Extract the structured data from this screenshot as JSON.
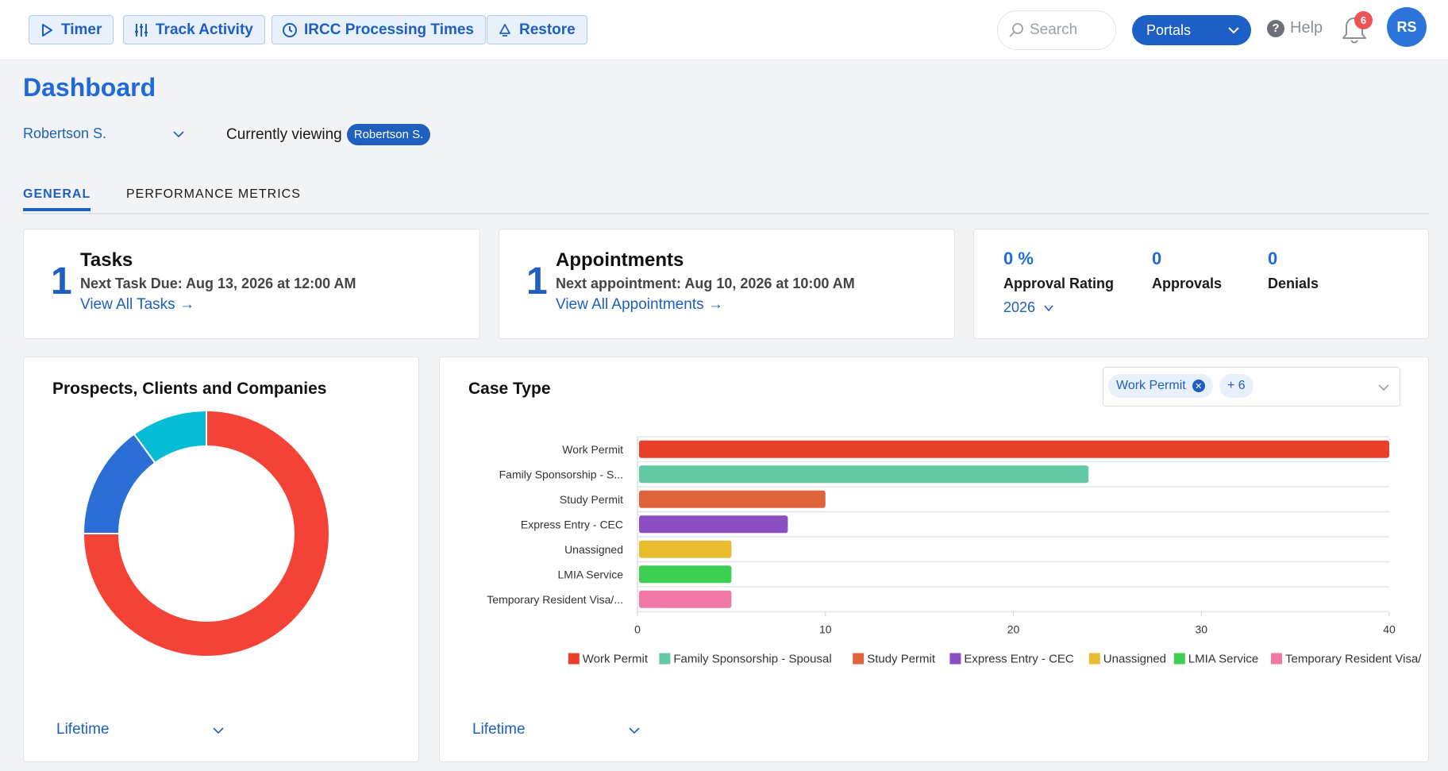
{
  "topbar": {
    "buttons": [
      {
        "label": "Timer",
        "icon": "play-icon"
      },
      {
        "label": "Track Activity",
        "icon": "sliders-icon"
      },
      {
        "label": "IRCC Processing Times",
        "icon": "clock-icon"
      },
      {
        "label": "Restore",
        "icon": "recycle-icon"
      }
    ],
    "search_placeholder": "Search",
    "portals_label": "Portals",
    "help_label": "Help",
    "notification_count": "6",
    "avatar_initials": "RS"
  },
  "header": {
    "title": "Dashboard",
    "user_select": "Robertson S.",
    "viewing_label": "Currently viewing",
    "viewing_user": "Robertson S."
  },
  "tabs": [
    {
      "label": "GENERAL",
      "active": true
    },
    {
      "label": "PERFORMANCE METRICS",
      "active": false
    }
  ],
  "tasks": {
    "count": "1",
    "title": "Tasks",
    "next": "Next Task Due: Aug 13, 2026 at 12:00 AM",
    "link": "View All Tasks →"
  },
  "appointments": {
    "count": "1",
    "title": "Appointments",
    "next": "Next appointment: Aug 10, 2026 at 10:00 AM",
    "link": "View All Appointments →"
  },
  "metrics": {
    "approval_rating_value": "0 %",
    "approval_rating_label": "Approval Rating",
    "approvals_value": "0",
    "approvals_label": "Approvals",
    "denials_value": "0",
    "denials_label": "Denials",
    "year": "2026"
  },
  "prospects_panel": {
    "title": "Prospects, Clients and Companies",
    "period": "Lifetime",
    "donut": [
      {
        "value": 75,
        "color": "#f44336"
      },
      {
        "value": 15,
        "color": "#2b6fd6"
      },
      {
        "value": 10,
        "color": "#06bcd4"
      }
    ]
  },
  "case_type_panel": {
    "title": "Case Type",
    "filter_chip": "Work Permit",
    "filter_more": "+ 6",
    "period": "Lifetime"
  },
  "chart_data": {
    "type": "bar",
    "orientation": "horizontal",
    "categories": [
      "Work Permit",
      "Family Sponsorship - S...",
      "Study Permit",
      "Express Entry - CEC",
      "Unassigned",
      "LMIA Service",
      "Temporary Resident Visa/..."
    ],
    "values": [
      40,
      24,
      10,
      8,
      5,
      5,
      5
    ],
    "colors": [
      "#e8402a",
      "#63c9a2",
      "#e0643a",
      "#8a4ec2",
      "#e9bd30",
      "#3dcf52",
      "#ef7aa6"
    ],
    "xlim": [
      0,
      40
    ],
    "xticks": [
      "0",
      "10",
      "20",
      "30",
      "40"
    ],
    "legend": [
      "Work Permit",
      "Family Sponsorship - Spousal",
      "Study Permit",
      "Express Entry - CEC",
      "Unassigned",
      "LMIA Service",
      "Temporary Resident Visa/ETA"
    ],
    "legend_position": "bottom"
  }
}
